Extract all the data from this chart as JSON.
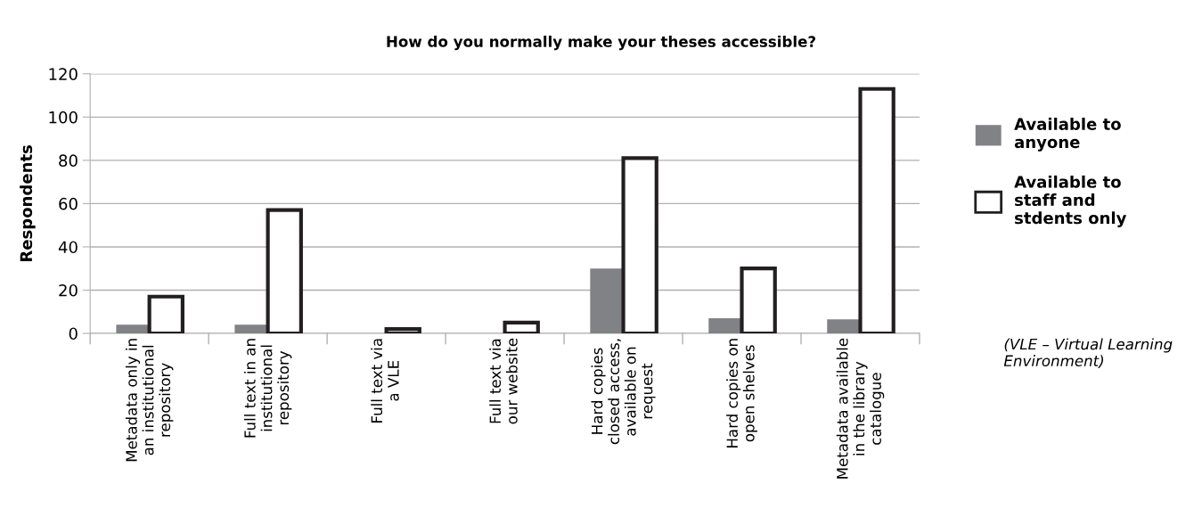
{
  "chart_data": {
    "type": "bar",
    "title": "How do you normally make your theses accessible?",
    "ylabel": "Respondents",
    "categories": [
      "Metadata only in\nan institutional\nrepository",
      "Full text in an\ninstitutional\nrepository",
      "Full text via\na VLE",
      "Full text via\nour website",
      "Hard copies\nclosed access,\navailable on\nrequest",
      "Hard copies on\nopen shelves",
      "Metadata available\nin the library\ncatalogue"
    ],
    "series": [
      {
        "name": "Available to anyone",
        "color": "#808285",
        "values": [
          4,
          4,
          0,
          0,
          30,
          7,
          6.5
        ]
      },
      {
        "name": "Available to staff and stdents only",
        "color": "#ffffff",
        "values": [
          17,
          57,
          2,
          5,
          81,
          30,
          113
        ]
      }
    ],
    "ylim": [
      0,
      120
    ],
    "yticks": [
      0,
      20,
      40,
      60,
      80,
      100,
      120
    ],
    "grid": "y",
    "legend": "right",
    "annotations": [
      "(VLE – Virtual Learning Environment)"
    ]
  }
}
